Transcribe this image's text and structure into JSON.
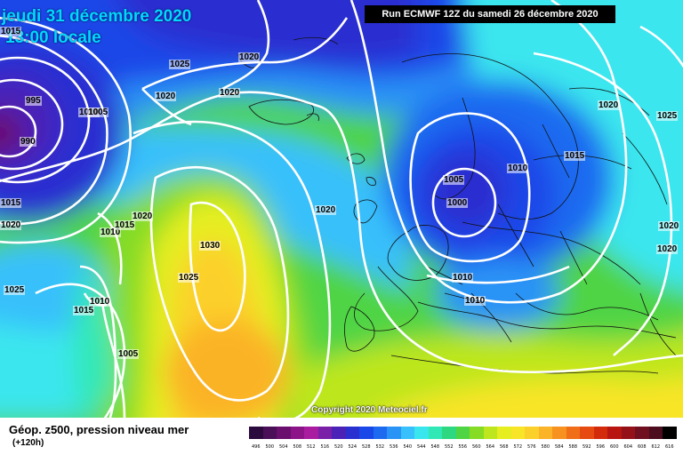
{
  "header": {
    "date": "jeudi 31 décembre 2020",
    "local_time": "13:00 locale",
    "run": "Run ECMWF 12Z du samedi 26 décembre 2020"
  },
  "copyright": "Copyright 2020 Meteociel.fr",
  "legend": {
    "title": "Géop. z500, pression niveau mer",
    "lead": "(+120h)",
    "scale": [
      {
        "value": "496",
        "color": "#2b0a3d"
      },
      {
        "value": "500",
        "color": "#4a0f56"
      },
      {
        "value": "504",
        "color": "#6a0f6e"
      },
      {
        "value": "508",
        "color": "#8d1488"
      },
      {
        "value": "512",
        "color": "#a91ca0"
      },
      {
        "value": "516",
        "color": "#7a1fa8"
      },
      {
        "value": "520",
        "color": "#4a22b8"
      },
      {
        "value": "524",
        "color": "#2a2fd0"
      },
      {
        "value": "528",
        "color": "#1a47e8"
      },
      {
        "value": "532",
        "color": "#1d6af0"
      },
      {
        "value": "536",
        "color": "#2a93f6"
      },
      {
        "value": "540",
        "color": "#37c0fb"
      },
      {
        "value": "544",
        "color": "#3ae6ee"
      },
      {
        "value": "548",
        "color": "#30e8b5"
      },
      {
        "value": "552",
        "color": "#2ed880"
      },
      {
        "value": "556",
        "color": "#4fd444"
      },
      {
        "value": "560",
        "color": "#86dc25"
      },
      {
        "value": "564",
        "color": "#bde61e"
      },
      {
        "value": "568",
        "color": "#e6ee20"
      },
      {
        "value": "572",
        "color": "#f8e528"
      },
      {
        "value": "576",
        "color": "#fcd02a"
      },
      {
        "value": "580",
        "color": "#fbb327"
      },
      {
        "value": "584",
        "color": "#f7911f"
      },
      {
        "value": "588",
        "color": "#f06e17"
      },
      {
        "value": "592",
        "color": "#e64a10"
      },
      {
        "value": "596",
        "color": "#d42a0c"
      },
      {
        "value": "600",
        "color": "#b81410"
      },
      {
        "value": "604",
        "color": "#94111a"
      },
      {
        "value": "608",
        "color": "#6f0f20"
      },
      {
        "value": "612",
        "color": "#4c0d1e"
      },
      {
        "value": "616",
        "color": "#000000"
      }
    ]
  },
  "isobars": [
    {
      "text": "1015"
    },
    {
      "text": "995"
    },
    {
      "text": "990"
    },
    {
      "text": "1010"
    },
    {
      "text": "1005"
    },
    {
      "text": "1025"
    },
    {
      "text": "1020"
    },
    {
      "text": "1020"
    },
    {
      "text": "1020"
    },
    {
      "text": "1020"
    },
    {
      "text": "1015"
    },
    {
      "text": "1020"
    },
    {
      "text": "1010"
    },
    {
      "text": "1015"
    },
    {
      "text": "1020"
    },
    {
      "text": "1030"
    },
    {
      "text": "1025"
    },
    {
      "text": "1025"
    },
    {
      "text": "1015"
    },
    {
      "text": "1010"
    },
    {
      "text": "1005"
    },
    {
      "text": "1020"
    },
    {
      "text": "1005"
    },
    {
      "text": "1000"
    },
    {
      "text": "1010"
    },
    {
      "text": "1015"
    },
    {
      "text": "1020"
    },
    {
      "text": "1025"
    },
    {
      "text": "1020"
    },
    {
      "text": "1010"
    },
    {
      "text": "1010"
    }
  ]
}
